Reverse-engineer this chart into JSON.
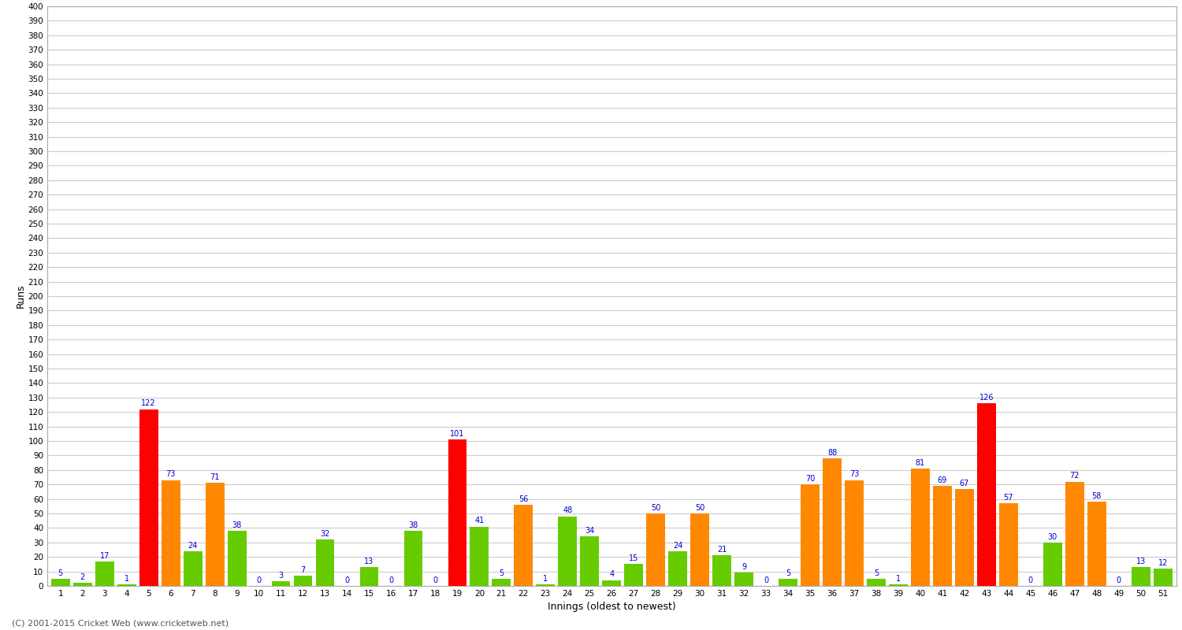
{
  "xlabel": "Innings (oldest to newest)",
  "ylabel": "Runs",
  "innings": [
    1,
    2,
    3,
    4,
    5,
    6,
    7,
    8,
    9,
    10,
    11,
    12,
    13,
    14,
    15,
    16,
    17,
    18,
    19,
    20,
    21,
    22,
    23,
    24,
    25,
    26,
    27,
    28,
    29,
    30,
    31,
    32,
    33,
    34,
    35,
    36,
    37,
    38,
    39,
    40,
    41,
    42,
    43,
    44,
    45,
    46,
    47,
    48,
    49,
    50,
    51
  ],
  "values": [
    5,
    2,
    17,
    1,
    122,
    73,
    24,
    71,
    38,
    0,
    3,
    7,
    32,
    0,
    13,
    0,
    38,
    0,
    101,
    41,
    5,
    56,
    1,
    48,
    34,
    4,
    15,
    50,
    24,
    50,
    21,
    9,
    0,
    5,
    70,
    88,
    73,
    5,
    1,
    81,
    69,
    67,
    126,
    57,
    0,
    30,
    72,
    58,
    0,
    13,
    12
  ],
  "colors": [
    "#66cc00",
    "#66cc00",
    "#66cc00",
    "#66cc00",
    "#ff0000",
    "#ff8800",
    "#66cc00",
    "#ff8800",
    "#66cc00",
    "#66cc00",
    "#66cc00",
    "#66cc00",
    "#66cc00",
    "#66cc00",
    "#66cc00",
    "#66cc00",
    "#66cc00",
    "#66cc00",
    "#ff0000",
    "#66cc00",
    "#66cc00",
    "#ff8800",
    "#66cc00",
    "#66cc00",
    "#66cc00",
    "#66cc00",
    "#66cc00",
    "#ff8800",
    "#66cc00",
    "#ff8800",
    "#66cc00",
    "#66cc00",
    "#66cc00",
    "#66cc00",
    "#ff8800",
    "#ff8800",
    "#ff8800",
    "#66cc00",
    "#66cc00",
    "#ff8800",
    "#ff8800",
    "#ff8800",
    "#ff0000",
    "#ff8800",
    "#66cc00",
    "#66cc00",
    "#ff8800",
    "#ff8800",
    "#66cc00",
    "#66cc00",
    "#66cc00"
  ],
  "ylim": [
    0,
    400
  ],
  "ytick_step": 10,
  "bg_color": "#ffffff",
  "grid_color": "#cccccc",
  "label_color": "#0000cc",
  "footer": "(C) 2001-2015 Cricket Web (www.cricketweb.net)"
}
